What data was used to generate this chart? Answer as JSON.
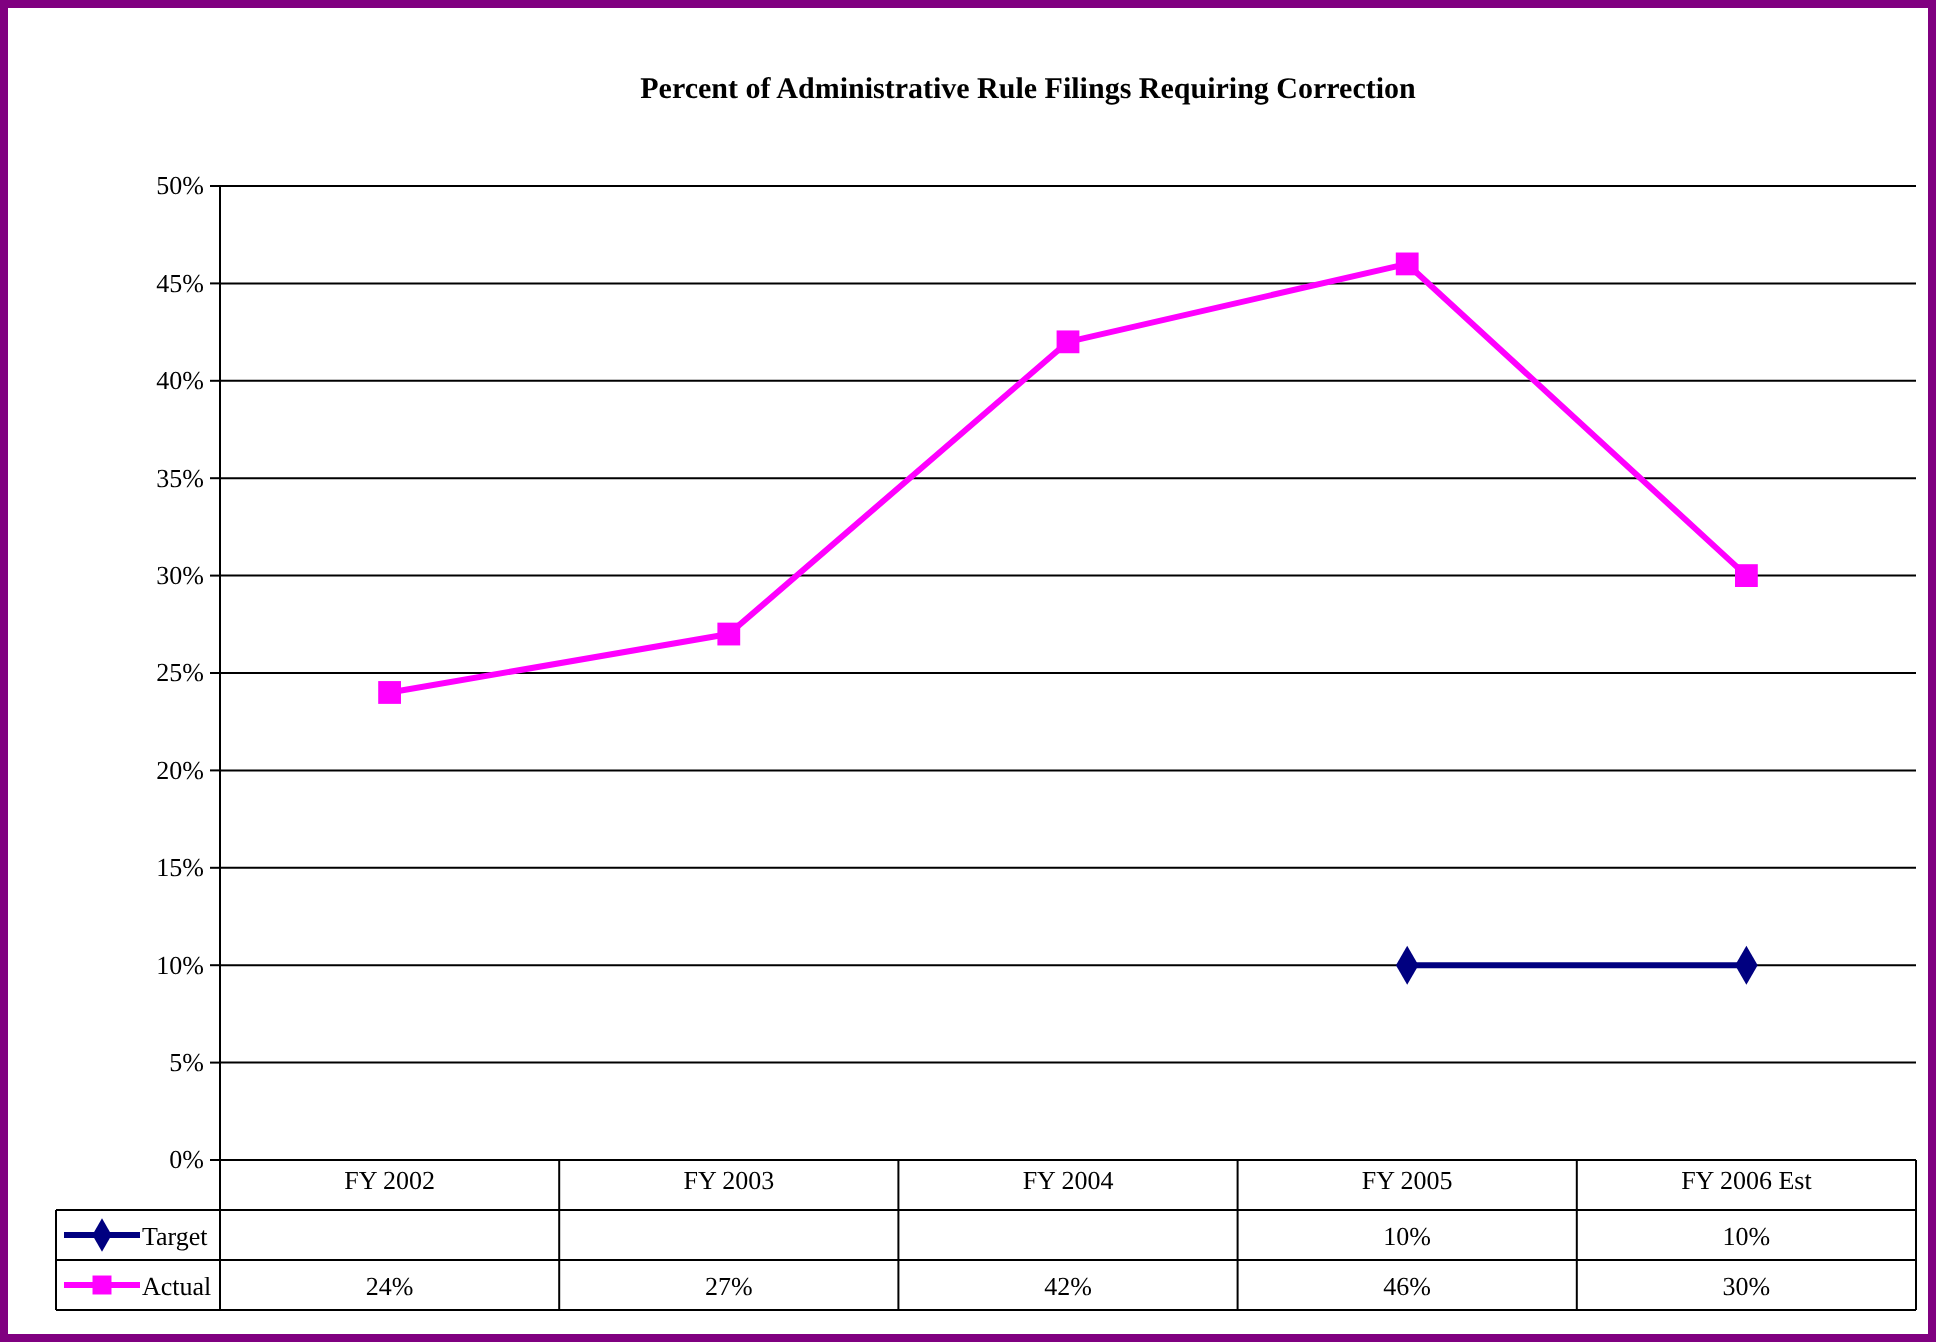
{
  "chart_data": {
    "type": "line",
    "title": "Percent of Administrative Rule Filings Requiring Correction",
    "categories": [
      "FY 2002",
      "FY 2003",
      "FY 2004",
      "FY 2005",
      "FY 2006 Est"
    ],
    "series": [
      {
        "name": "Target",
        "color": "#000080",
        "marker": "diamond",
        "values": [
          null,
          null,
          null,
          10,
          10
        ],
        "value_labels": [
          null,
          null,
          null,
          "10%",
          "10%"
        ]
      },
      {
        "name": "Actual",
        "color": "#ff00ff",
        "marker": "square",
        "values": [
          24,
          27,
          42,
          46,
          30
        ],
        "value_labels": [
          "24%",
          "27%",
          "42%",
          "46%",
          "30%"
        ]
      }
    ],
    "ylim": [
      0,
      50
    ],
    "yticks": [
      {
        "value": 0,
        "label": "0%"
      },
      {
        "value": 5,
        "label": "5%"
      },
      {
        "value": 10,
        "label": "10%"
      },
      {
        "value": 15,
        "label": "15%"
      },
      {
        "value": 20,
        "label": "20%"
      },
      {
        "value": 25,
        "label": "25%"
      },
      {
        "value": 30,
        "label": "30%"
      },
      {
        "value": 35,
        "label": "35%"
      },
      {
        "value": 40,
        "label": "40%"
      },
      {
        "value": 45,
        "label": "45%"
      },
      {
        "value": 50,
        "label": "50%"
      }
    ],
    "grid": "y",
    "legend": "bottom left",
    "line_style": "solid"
  }
}
